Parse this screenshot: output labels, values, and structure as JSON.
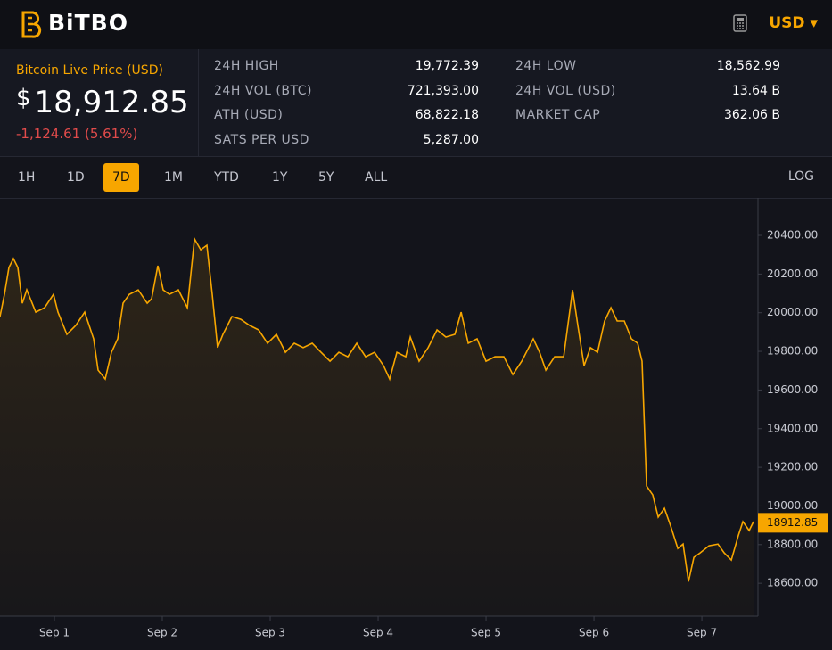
{
  "header": {
    "logo": "BiTBO",
    "currency": "USD"
  },
  "price": {
    "label": "Bitcoin Live Price (USD)",
    "symbol": "$",
    "value": "18,912.85",
    "change": "-1,124.61 (5.61%)"
  },
  "stats": [
    {
      "label": "24H HIGH",
      "value": "19,772.39"
    },
    {
      "label": "24H VOL (BTC)",
      "value": "721,393.00"
    },
    {
      "label": "ATH (USD)",
      "value": "68,822.18"
    },
    {
      "label": "SATS PER USD",
      "value": "5,287.00"
    },
    {
      "label": "24H LOW",
      "value": "18,562.99"
    },
    {
      "label": "24H VOL (USD)",
      "value": "13.64 B"
    },
    {
      "label": "MARKET CAP",
      "value": "362.06 B"
    }
  ],
  "ranges": [
    {
      "label": "1H"
    },
    {
      "label": "1D"
    },
    {
      "label": "7D",
      "selected": true
    },
    {
      "label": "1M"
    },
    {
      "label": "YTD"
    },
    {
      "label": "1Y"
    },
    {
      "label": "5Y"
    },
    {
      "label": "ALL"
    }
  ],
  "log_toggle": "LOG",
  "chart_data": {
    "type": "line",
    "x": [
      0.496,
      0.537,
      0.579,
      0.62,
      0.661,
      0.703,
      0.744,
      0.827,
      0.909,
      0.992,
      1.033,
      1.116,
      1.198,
      1.281,
      1.364,
      1.405,
      1.471,
      1.529,
      1.587,
      1.636,
      1.694,
      1.777,
      1.86,
      1.901,
      1.959,
      2.008,
      2.066,
      2.149,
      2.232,
      2.298,
      2.356,
      2.413,
      2.463,
      2.512,
      2.562,
      2.645,
      2.727,
      2.81,
      2.893,
      2.975,
      3.058,
      3.141,
      3.223,
      3.306,
      3.389,
      3.471,
      3.554,
      3.636,
      3.719,
      3.802,
      3.884,
      3.967,
      4.05,
      4.107,
      4.174,
      4.256,
      4.298,
      4.38,
      4.463,
      4.546,
      4.628,
      4.711,
      4.769,
      4.835,
      4.917,
      5.0,
      5.083,
      5.165,
      5.248,
      5.331,
      5.438,
      5.496,
      5.554,
      5.636,
      5.719,
      5.802,
      5.851,
      5.909,
      5.967,
      6.033,
      6.099,
      6.157,
      6.215,
      6.281,
      6.347,
      6.405,
      6.446,
      6.488,
      6.545,
      6.595,
      6.653,
      6.711,
      6.777,
      6.826,
      6.876,
      6.926,
      6.984,
      7.066,
      7.149,
      7.207,
      7.273,
      7.339,
      7.38,
      7.438,
      7.479
    ],
    "series": [
      {
        "color": "#f7a600",
        "values": [
          19980,
          20095,
          20234,
          20280,
          20234,
          20049,
          20118,
          20003,
          20026,
          20095,
          20003,
          19888,
          19934,
          20003,
          19865,
          19703,
          19657,
          19795,
          19865,
          20049,
          20095,
          20118,
          20049,
          20072,
          20243,
          20118,
          20095,
          20118,
          20026,
          20382,
          20326,
          20349,
          20095,
          19819,
          19888,
          19980,
          19966,
          19934,
          19911,
          19842,
          19888,
          19795,
          19842,
          19819,
          19842,
          19795,
          19749,
          19795,
          19772,
          19842,
          19772,
          19795,
          19726,
          19657,
          19795,
          19772,
          19874,
          19749,
          19819,
          19911,
          19874,
          19888,
          20003,
          19842,
          19865,
          19749,
          19772,
          19772,
          19680,
          19749,
          19865,
          19795,
          19703,
          19772,
          19772,
          20118,
          19934,
          19726,
          19819,
          19795,
          19957,
          20026,
          19957,
          19957,
          19865,
          19842,
          19749,
          19103,
          19057,
          18942,
          18988,
          18896,
          18780,
          18803,
          18609,
          18734,
          18757,
          18794,
          18803,
          18757,
          18720,
          18849,
          18919,
          18873,
          18919
        ]
      }
    ],
    "xlim": [
      0.496,
      7.52
    ],
    "xticks": [
      {
        "value": 1,
        "label": "Sep 1"
      },
      {
        "value": 2,
        "label": "Sep 2"
      },
      {
        "value": 3,
        "label": "Sep 3"
      },
      {
        "value": 4,
        "label": "Sep 4"
      },
      {
        "value": 5,
        "label": "Sep 5"
      },
      {
        "value": 6,
        "label": "Sep 6"
      },
      {
        "value": 7,
        "label": "Sep 7"
      }
    ],
    "ylim": [
      18430,
      20580
    ],
    "yticks": [
      {
        "value": 18600,
        "label": "18600.00"
      },
      {
        "value": 18800,
        "label": "18800.00"
      },
      {
        "value": 19000,
        "label": "19000.00"
      },
      {
        "value": 19200,
        "label": "19200.00"
      },
      {
        "value": 19400,
        "label": "19400.00"
      },
      {
        "value": 19600,
        "label": "19600.00"
      },
      {
        "value": 19800,
        "label": "19800.00"
      },
      {
        "value": 20000,
        "label": "20000.00"
      },
      {
        "value": 20200,
        "label": "20200.00"
      },
      {
        "value": 20400,
        "label": "20400.00"
      }
    ],
    "annotations": [
      {
        "value": 18912.85,
        "label": "18912.85"
      }
    ]
  }
}
